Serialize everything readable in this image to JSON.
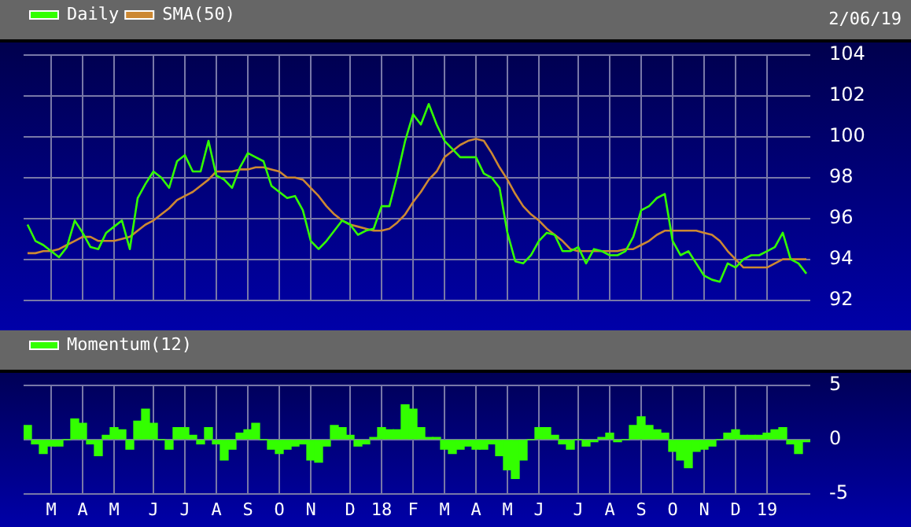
{
  "chart_data": [
    {
      "type": "line",
      "annotations": [
        "2/06/19"
      ],
      "categories": [
        null,
        null,
        null,
        null,
        null,
        null,
        null,
        null,
        null,
        null,
        null,
        null,
        null,
        null,
        null,
        null,
        null,
        null,
        null,
        null,
        null,
        null,
        null,
        null,
        null,
        null,
        null,
        null,
        null,
        null,
        null,
        null,
        null,
        null,
        null,
        null,
        null,
        null,
        null,
        null,
        null,
        null,
        null,
        null,
        null,
        null,
        null,
        null,
        null,
        null,
        null,
        null,
        null,
        null,
        null,
        null,
        null,
        null,
        null,
        null,
        null,
        null,
        null,
        null,
        null,
        null,
        null,
        null,
        null,
        null,
        null,
        null,
        null,
        null,
        null,
        null,
        null,
        null,
        null,
        null,
        null,
        null,
        null,
        null,
        null,
        null,
        null,
        null,
        null,
        null,
        null,
        null,
        null,
        null,
        null,
        null,
        null,
        null,
        null,
        null
      ],
      "series": [
        {
          "name": "Daily",
          "color": "#33ff00",
          "values": [
            95.7,
            94.9,
            94.7,
            94.4,
            94.1,
            94.6,
            95.9,
            95.3,
            94.6,
            94.5,
            95.3,
            95.6,
            95.9,
            94.5,
            97.0,
            97.7,
            98.3,
            98.0,
            97.5,
            98.8,
            99.1,
            98.3,
            98.3,
            99.8,
            98.1,
            97.9,
            97.5,
            98.5,
            99.2,
            99.0,
            98.8,
            97.6,
            97.3,
            97.0,
            97.1,
            96.4,
            94.9,
            94.5,
            94.9,
            95.4,
            95.9,
            95.7,
            95.2,
            95.4,
            95.5,
            96.6,
            96.6,
            98.1,
            99.8,
            101.1,
            100.6,
            101.6,
            100.6,
            99.8,
            99.4,
            99.0,
            99.0,
            99.0,
            98.2,
            98.0,
            97.5,
            95.3,
            93.9,
            93.8,
            94.2,
            94.9,
            95.3,
            95.2,
            94.4,
            94.4,
            94.6,
            93.8,
            94.5,
            94.4,
            94.2,
            94.2,
            94.4,
            95.1,
            96.4,
            96.6,
            97.0,
            97.2,
            94.9,
            94.2,
            94.4,
            93.8,
            93.2,
            93.0,
            92.9,
            93.8,
            93.6,
            94.0,
            94.2,
            94.2,
            94.4,
            94.6,
            95.3,
            94.0,
            93.8,
            93.3
          ]
        },
        {
          "name": "SMA(50)",
          "color": "#cc8833",
          "values": [
            94.3,
            94.3,
            94.4,
            94.4,
            94.5,
            94.7,
            94.9,
            95.1,
            95.1,
            94.9,
            94.9,
            94.9,
            95.0,
            95.1,
            95.4,
            95.7,
            95.9,
            96.2,
            96.5,
            96.9,
            97.1,
            97.3,
            97.6,
            97.9,
            98.3,
            98.3,
            98.3,
            98.4,
            98.4,
            98.5,
            98.5,
            98.4,
            98.3,
            98.0,
            98.0,
            97.9,
            97.5,
            97.1,
            96.6,
            96.2,
            95.9,
            95.7,
            95.6,
            95.5,
            95.4,
            95.4,
            95.5,
            95.8,
            96.2,
            96.8,
            97.3,
            97.9,
            98.3,
            99.0,
            99.3,
            99.6,
            99.8,
            99.9,
            99.8,
            99.2,
            98.5,
            97.9,
            97.2,
            96.6,
            96.2,
            95.9,
            95.5,
            95.2,
            94.9,
            94.5,
            94.4,
            94.4,
            94.4,
            94.4,
            94.4,
            94.4,
            94.5,
            94.5,
            94.7,
            94.9,
            95.2,
            95.4,
            95.4,
            95.4,
            95.4,
            95.4,
            95.3,
            95.2,
            94.9,
            94.4,
            94.0,
            93.6,
            93.6,
            93.6,
            93.6,
            93.8,
            94.0,
            94.0,
            94.0,
            94.0
          ]
        }
      ],
      "ylim": [
        92,
        104
      ],
      "yticks": [
        92,
        94,
        96,
        98,
        100,
        102,
        104
      ],
      "grid": true,
      "legend": "top left",
      "tick_labels": "y",
      "marker": "none",
      "line_style": "solid"
    },
    {
      "type": "bar",
      "categories": [
        null,
        null,
        null,
        "M",
        null,
        null,
        null,
        "A",
        null,
        null,
        null,
        "M",
        null,
        null,
        null,
        null,
        "J",
        null,
        null,
        null,
        "J",
        null,
        null,
        null,
        "A",
        null,
        null,
        null,
        "S",
        null,
        null,
        null,
        "O",
        null,
        null,
        null,
        "N",
        null,
        null,
        null,
        null,
        "D",
        null,
        null,
        null,
        "18",
        null,
        null,
        null,
        "F",
        null,
        null,
        null,
        "M",
        null,
        null,
        null,
        "A",
        null,
        null,
        null,
        "M",
        null,
        null,
        null,
        "J",
        null,
        null,
        null,
        null,
        "J",
        null,
        null,
        null,
        "A",
        null,
        null,
        null,
        "S",
        null,
        null,
        null,
        "O",
        null,
        null,
        null,
        "N",
        null,
        null,
        null,
        "D",
        null,
        null,
        null,
        "19",
        null,
        null,
        null,
        null,
        null
      ],
      "series": [
        {
          "name": "Momentum(12)",
          "color": "#33ff00",
          "values": [
            1.3,
            -0.4,
            -1.3,
            -0.6,
            -0.6,
            0,
            1.9,
            1.5,
            -0.4,
            -1.5,
            0.4,
            1.1,
            0.9,
            -0.9,
            1.7,
            2.8,
            1.5,
            0,
            -0.9,
            1.1,
            1.1,
            0.4,
            -0.4,
            1.1,
            -0.4,
            -1.9,
            -0.9,
            0.6,
            0.9,
            1.5,
            0,
            -0.9,
            -1.3,
            -0.9,
            -0.6,
            -0.4,
            -1.9,
            -2.1,
            -0.6,
            1.3,
            1.1,
            0.4,
            -0.6,
            -0.4,
            0.2,
            1.1,
            0.9,
            0.9,
            3.2,
            2.8,
            1.1,
            0.2,
            0.2,
            -0.9,
            -1.3,
            -0.9,
            -0.6,
            -0.9,
            -0.9,
            -0.4,
            -1.5,
            -2.8,
            -3.6,
            -1.9,
            0,
            1.1,
            1.1,
            0.4,
            -0.4,
            -0.9,
            0,
            -0.6,
            -0.2,
            0.2,
            0.6,
            -0.2,
            0,
            1.3,
            2.1,
            1.3,
            0.9,
            0.6,
            -1.1,
            -1.9,
            -2.6,
            -1.1,
            -0.9,
            -0.6,
            0,
            0.6,
            0.9,
            0.4,
            0.4,
            0.4,
            0.6,
            0.9,
            1.1,
            -0.4,
            -1.3,
            -0.2
          ]
        }
      ],
      "ylim": [
        -5,
        5
      ],
      "yticks": [
        -5,
        0,
        5
      ],
      "grid": true,
      "legend": "top left"
    }
  ]
}
